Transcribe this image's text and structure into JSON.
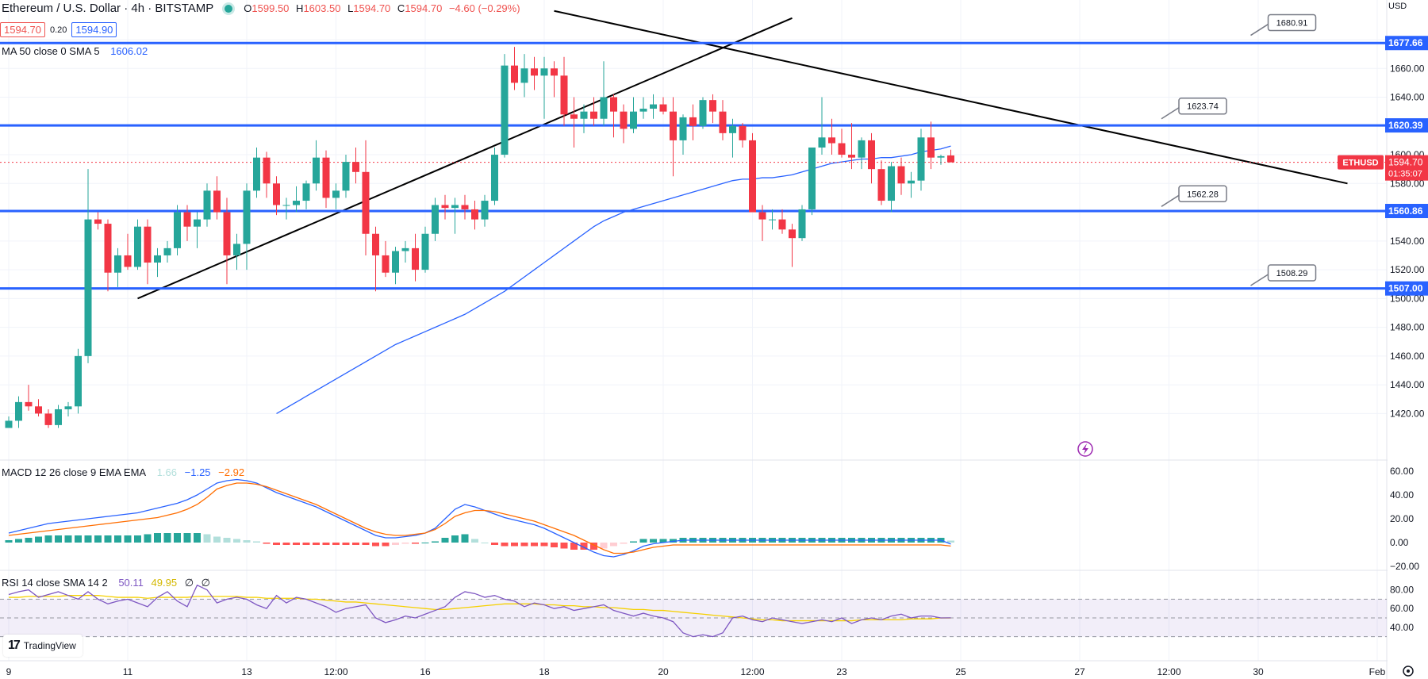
{
  "header": {
    "symbol": "Ethereum / U.S. Dollar · 4h · BITSTAMP",
    "o_label": "O",
    "o": "1599.50",
    "h_label": "H",
    "h": "1603.50",
    "l_label": "L",
    "l": "1594.70",
    "c_label": "C",
    "c": "1594.70",
    "change": "−4.60 (−0.29%)"
  },
  "quote": {
    "bid": "1594.70",
    "spread": "0.20",
    "ask": "1594.90"
  },
  "indicators": {
    "ma": {
      "label": "MA 50 close 0 SMA 5",
      "value": "1606.02"
    },
    "macd": {
      "label": "MACD 12 26 close 9 EMA EMA",
      "hist": "1.66",
      "macd": "−1.25",
      "signal": "−2.92"
    },
    "rsi": {
      "label": "RSI 14 close SMA 14 2",
      "rsi": "50.11",
      "sma": "49.95",
      "ex1": "∅",
      "ex2": "∅"
    }
  },
  "branding": {
    "logo_text": "TradingView"
  },
  "colors": {
    "up": "#26a69a",
    "down": "#f23645",
    "level": "#2962ff",
    "ma": "#2962ff",
    "macd": "#2962ff",
    "signal": "#ff6d00",
    "rsi": "#7e57c2",
    "rsi_sma": "#f5d000",
    "trend": "#000000"
  },
  "chart_data": [
    {
      "type": "candlestick",
      "symbol_tag": "ETHUSD",
      "currency": "USD",
      "last_price": "1594.70",
      "countdown": "01:35:07",
      "y_ticks": [
        1420,
        1440,
        1460,
        1480,
        1500,
        1520,
        1540,
        1560,
        1580,
        1600,
        1620,
        1640,
        1660,
        1680
      ],
      "x_ticks": [
        {
          "label": "9",
          "bar": 0
        },
        {
          "label": "11",
          "bar": 12
        },
        {
          "label": "13",
          "bar": 24
        },
        {
          "label": "12:00",
          "bar": 33
        },
        {
          "label": "16",
          "bar": 42
        },
        {
          "label": "18",
          "bar": 54
        },
        {
          "label": "20",
          "bar": 66
        },
        {
          "label": "12:00",
          "bar": 75
        },
        {
          "label": "23",
          "bar": 84
        },
        {
          "label": "25",
          "bar": 96
        },
        {
          "label": "27",
          "bar": 108
        },
        {
          "label": "12:00",
          "bar": 117
        },
        {
          "label": "30",
          "bar": 126
        },
        {
          "label": "Feb",
          "bar": 138
        }
      ],
      "levels": [
        {
          "value": 1677.66,
          "label": "1677.66"
        },
        {
          "value": 1620.39,
          "label": "1620.39"
        },
        {
          "value": 1560.86,
          "label": "1560.86"
        },
        {
          "value": 1507.0,
          "label": "1507.00"
        }
      ],
      "callouts": [
        {
          "label": "1680.91",
          "bar": 127,
          "value": 1683
        },
        {
          "label": "1623.74",
          "bar": 118,
          "value": 1625
        },
        {
          "label": "1562.28",
          "bar": 118,
          "value": 1564
        },
        {
          "label": "1508.29",
          "bar": 127,
          "value": 1509
        }
      ],
      "trendlines": [
        {
          "from": {
            "bar": 13,
            "value": 1500
          },
          "to": {
            "bar": 79,
            "value": 1695
          }
        },
        {
          "from": {
            "bar": 55,
            "value": 1700
          },
          "to": {
            "bar": 135,
            "value": 1580
          }
        }
      ],
      "candles": [
        [
          1410,
          1418,
          1410,
          1415
        ],
        [
          1415,
          1432,
          1410,
          1428
        ],
        [
          1428,
          1440,
          1422,
          1425
        ],
        [
          1425,
          1430,
          1418,
          1420
        ],
        [
          1420,
          1423,
          1410,
          1412
        ],
        [
          1412,
          1426,
          1410,
          1423
        ],
        [
          1423,
          1428,
          1418,
          1425
        ],
        [
          1425,
          1465,
          1420,
          1460
        ],
        [
          1460,
          1590,
          1455,
          1555
        ],
        [
          1555,
          1560,
          1548,
          1552
        ],
        [
          1552,
          1555,
          1505,
          1518
        ],
        [
          1518,
          1535,
          1508,
          1530
        ],
        [
          1530,
          1545,
          1520,
          1522
        ],
        [
          1522,
          1555,
          1520,
          1550
        ],
        [
          1550,
          1555,
          1510,
          1525
        ],
        [
          1525,
          1535,
          1515,
          1530
        ],
        [
          1530,
          1540,
          1525,
          1535
        ],
        [
          1535,
          1565,
          1530,
          1560
        ],
        [
          1560,
          1565,
          1540,
          1550
        ],
        [
          1550,
          1560,
          1535,
          1555
        ],
        [
          1555,
          1580,
          1550,
          1575
        ],
        [
          1575,
          1585,
          1555,
          1560
        ],
        [
          1560,
          1570,
          1510,
          1530
        ],
        [
          1530,
          1545,
          1520,
          1538
        ],
        [
          1538,
          1580,
          1520,
          1575
        ],
        [
          1575,
          1605,
          1570,
          1598
        ],
        [
          1598,
          1602,
          1570,
          1580
        ],
        [
          1580,
          1585,
          1558,
          1565
        ],
        [
          1565,
          1570,
          1555,
          1565
        ],
        [
          1565,
          1578,
          1560,
          1568
        ],
        [
          1568,
          1582,
          1562,
          1580
        ],
        [
          1580,
          1610,
          1575,
          1598
        ],
        [
          1598,
          1603,
          1563,
          1570
        ],
        [
          1570,
          1580,
          1562,
          1575
        ],
        [
          1575,
          1600,
          1570,
          1595
        ],
        [
          1595,
          1605,
          1580,
          1588
        ],
        [
          1588,
          1610,
          1530,
          1545
        ],
        [
          1545,
          1550,
          1505,
          1530
        ],
        [
          1530,
          1540,
          1515,
          1518
        ],
        [
          1518,
          1536,
          1510,
          1533
        ],
        [
          1533,
          1540,
          1525,
          1535
        ],
        [
          1535,
          1545,
          1512,
          1520
        ],
        [
          1520,
          1550,
          1518,
          1545
        ],
        [
          1545,
          1570,
          1540,
          1565
        ],
        [
          1565,
          1572,
          1555,
          1563
        ],
        [
          1563,
          1570,
          1545,
          1565
        ],
        [
          1565,
          1572,
          1555,
          1562
        ],
        [
          1562,
          1568,
          1548,
          1555
        ],
        [
          1555,
          1572,
          1550,
          1568
        ],
        [
          1568,
          1605,
          1565,
          1600
        ],
        [
          1600,
          1670,
          1598,
          1662
        ],
        [
          1662,
          1675,
          1645,
          1650
        ],
        [
          1650,
          1670,
          1640,
          1660
        ],
        [
          1660,
          1668,
          1645,
          1655
        ],
        [
          1655,
          1668,
          1625,
          1660
        ],
        [
          1660,
          1665,
          1640,
          1655
        ],
        [
          1655,
          1668,
          1620,
          1628
        ],
        [
          1628,
          1640,
          1605,
          1625
        ],
        [
          1625,
          1635,
          1615,
          1630
        ],
        [
          1630,
          1640,
          1620,
          1625
        ],
        [
          1625,
          1665,
          1620,
          1640
        ],
        [
          1640,
          1642,
          1612,
          1630
        ],
        [
          1630,
          1635,
          1608,
          1618
        ],
        [
          1618,
          1640,
          1615,
          1630
        ],
        [
          1630,
          1640,
          1625,
          1632
        ],
        [
          1632,
          1642,
          1625,
          1635
        ],
        [
          1635,
          1640,
          1628,
          1630
        ],
        [
          1630,
          1640,
          1585,
          1610
        ],
        [
          1610,
          1628,
          1600,
          1626
        ],
        [
          1626,
          1635,
          1610,
          1620
        ],
        [
          1620,
          1640,
          1618,
          1638
        ],
        [
          1638,
          1642,
          1622,
          1630
        ],
        [
          1630,
          1638,
          1610,
          1615
        ],
        [
          1615,
          1625,
          1598,
          1620
        ],
        [
          1620,
          1622,
          1605,
          1610
        ],
        [
          1610,
          1615,
          1560,
          1560
        ],
        [
          1560,
          1565,
          1540,
          1555
        ],
        [
          1555,
          1562,
          1548,
          1555
        ],
        [
          1555,
          1562,
          1545,
          1548
        ],
        [
          1548,
          1552,
          1522,
          1542
        ],
        [
          1542,
          1565,
          1540,
          1562
        ],
        [
          1562,
          1605,
          1558,
          1605
        ],
        [
          1605,
          1640,
          1600,
          1612
        ],
        [
          1612,
          1625,
          1600,
          1608
        ],
        [
          1608,
          1618,
          1598,
          1600
        ],
        [
          1600,
          1622,
          1590,
          1598
        ],
        [
          1598,
          1612,
          1590,
          1610
        ],
        [
          1610,
          1615,
          1580,
          1590
        ],
        [
          1590,
          1596,
          1565,
          1568
        ],
        [
          1568,
          1595,
          1560,
          1592
        ],
        [
          1592,
          1598,
          1572,
          1580
        ],
        [
          1580,
          1588,
          1570,
          1582
        ],
        [
          1582,
          1618,
          1575,
          1612
        ],
        [
          1612,
          1623,
          1590,
          1598
        ],
        [
          1598,
          1600,
          1593,
          1599
        ],
        [
          1599.5,
          1603.5,
          1594.7,
          1594.7
        ]
      ],
      "ma50": [
        null,
        null,
        null,
        null,
        null,
        null,
        null,
        null,
        null,
        null,
        null,
        null,
        null,
        null,
        null,
        null,
        null,
        null,
        null,
        null,
        null,
        null,
        null,
        null,
        null,
        null,
        null,
        1420,
        1424,
        1428,
        1432,
        1436,
        1440,
        1444,
        1448,
        1452,
        1456,
        1460,
        1464,
        1468,
        1471,
        1474,
        1477,
        1480,
        1483,
        1486,
        1489,
        1493,
        1497,
        1501,
        1505,
        1510,
        1515,
        1520,
        1525,
        1530,
        1535,
        1540,
        1545,
        1550,
        1554,
        1557,
        1560,
        1562,
        1564,
        1566,
        1568,
        1570,
        1572,
        1574,
        1576,
        1578,
        1580,
        1582,
        1583,
        1583,
        1584,
        1584,
        1585,
        1586,
        1588,
        1590,
        1592,
        1594,
        1595,
        1596,
        1597,
        1597,
        1598,
        1598,
        1599,
        1600,
        1602,
        1603,
        1604,
        1606
      ]
    },
    {
      "type": "macd",
      "y_ticks": [
        60,
        40,
        20,
        0,
        -20
      ],
      "y_tick_labels": [
        "60.00",
        "40.00",
        "20.00",
        "0.00",
        "−20.00"
      ],
      "macd": [
        8,
        10,
        12,
        14,
        16,
        17,
        18,
        19,
        20,
        21,
        22,
        23,
        24,
        25,
        27,
        29,
        31,
        33,
        36,
        40,
        45,
        50,
        52,
        53,
        52,
        50,
        46,
        42,
        39,
        36,
        33,
        30,
        26,
        22,
        18,
        14,
        10,
        6,
        4,
        4,
        5,
        6,
        8,
        12,
        20,
        28,
        32,
        30,
        27,
        24,
        21,
        19,
        17,
        15,
        12,
        8,
        4,
        0,
        -4,
        -8,
        -11,
        -12,
        -10,
        -7,
        -3,
        -1,
        0,
        1,
        2,
        2,
        2,
        2,
        2,
        2,
        2,
        2,
        2,
        2,
        2,
        2,
        2,
        2,
        2,
        2,
        2,
        2,
        2,
        2,
        2,
        2,
        2,
        2,
        2,
        2,
        2,
        -1.25
      ],
      "signal": [
        6,
        7,
        8,
        9,
        10,
        11,
        12,
        13,
        14,
        15,
        16,
        17,
        18,
        19,
        20,
        21,
        23,
        25,
        28,
        32,
        38,
        45,
        48,
        50,
        50,
        49,
        47,
        44,
        41,
        38,
        35,
        32,
        28,
        24,
        20,
        16,
        12,
        9,
        7,
        6,
        6,
        7,
        8,
        11,
        16,
        22,
        25,
        27,
        27,
        26,
        24,
        22,
        20,
        18,
        15,
        12,
        9,
        6,
        2,
        -2,
        -6,
        -9,
        -9,
        -8,
        -6,
        -4,
        -3,
        -2,
        -2,
        -2,
        -2,
        -2,
        -2,
        -2,
        -2,
        -2,
        -2,
        -2,
        -2,
        -2,
        -2,
        -2,
        -2,
        -2,
        -2,
        -2,
        -2,
        -2,
        -2,
        -2,
        -2,
        -2,
        -2,
        -2,
        -2,
        -2.92
      ],
      "hist": [
        2,
        3,
        4,
        5,
        6,
        6,
        6,
        6,
        6,
        6,
        6,
        6,
        6,
        6,
        7,
        8,
        8,
        8,
        8,
        8,
        7,
        5,
        4,
        3,
        2,
        1,
        -1,
        -2,
        -2,
        -2,
        -2,
        -2,
        -2,
        -2,
        -2,
        -2,
        -2,
        -3,
        -3,
        -2,
        -1,
        -1,
        0,
        1,
        4,
        6,
        7,
        3,
        0,
        -2,
        -3,
        -3,
        -3,
        -3,
        -3,
        -4,
        -5,
        -6,
        -6,
        -6,
        -5,
        -3,
        -1,
        1,
        3,
        3,
        3,
        3,
        4,
        4,
        4,
        4,
        4,
        4,
        4,
        4,
        4,
        4,
        4,
        4,
        4,
        4,
        4,
        4,
        4,
        4,
        4,
        4,
        4,
        4,
        4,
        4,
        4,
        4,
        4,
        1.66
      ]
    },
    {
      "type": "rsi",
      "y_ticks": [
        80,
        60,
        40
      ],
      "y_tick_labels": [
        "80.00",
        "60.00",
        "40.00"
      ],
      "band": [
        30,
        70
      ],
      "rsi": [
        75,
        78,
        80,
        72,
        75,
        78,
        74,
        70,
        78,
        70,
        65,
        68,
        70,
        66,
        62,
        72,
        78,
        68,
        62,
        85,
        80,
        66,
        70,
        72,
        70,
        64,
        60,
        74,
        66,
        72,
        70,
        66,
        62,
        56,
        60,
        62,
        64,
        50,
        45,
        48,
        52,
        50,
        54,
        58,
        62,
        72,
        78,
        76,
        72,
        74,
        70,
        68,
        62,
        66,
        64,
        60,
        62,
        58,
        60,
        62,
        64,
        58,
        55,
        52,
        55,
        52,
        50,
        46,
        34,
        30,
        32,
        30,
        34,
        50,
        52,
        48,
        46,
        50,
        48,
        46,
        44,
        46,
        48,
        46,
        50,
        44,
        48,
        50,
        48,
        52,
        54,
        50,
        52,
        52,
        50,
        50.11
      ],
      "rsi_sma": [
        72,
        72,
        73,
        73,
        73,
        73,
        74,
        74,
        74,
        74,
        73,
        72,
        72,
        72,
        71,
        72,
        72,
        72,
        72,
        73,
        73,
        73,
        73,
        73,
        72,
        72,
        71,
        71,
        71,
        71,
        70,
        70,
        69,
        68,
        67,
        67,
        66,
        65,
        64,
        63,
        62,
        61,
        60,
        59,
        59,
        60,
        61,
        62,
        63,
        64,
        65,
        65,
        65,
        65,
        64,
        64,
        63,
        63,
        62,
        62,
        61,
        61,
        60,
        59,
        59,
        58,
        58,
        57,
        56,
        55,
        54,
        53,
        52,
        51,
        50,
        49,
        48,
        48,
        47,
        47,
        47,
        47,
        47,
        47,
        47,
        47,
        48,
        48,
        48,
        48,
        48,
        49,
        49,
        49,
        50,
        49.95
      ]
    }
  ]
}
